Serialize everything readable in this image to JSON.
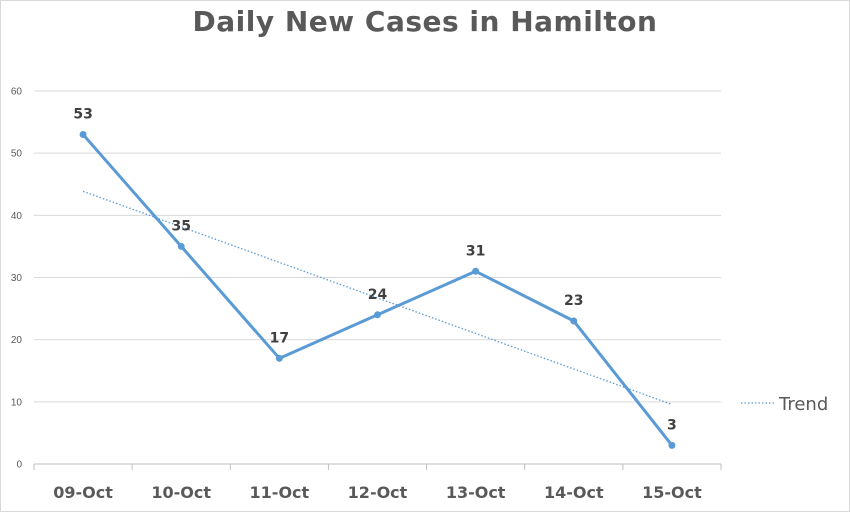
{
  "chart_data": {
    "type": "line",
    "title": "Daily New Cases in Hamilton",
    "categories": [
      "09-Oct",
      "10-Oct",
      "11-Oct",
      "12-Oct",
      "13-Oct",
      "14-Oct",
      "15-Oct"
    ],
    "series": [
      {
        "values": [
          53,
          35,
          17,
          24,
          31,
          23,
          3
        ],
        "color": "#5b9bd5",
        "data_labels": [
          "53",
          "35",
          "17",
          "24",
          "31",
          "23",
          "3"
        ]
      }
    ],
    "trendline": {
      "name": "Trend",
      "kind": "linear",
      "style": "dotted",
      "color": "#5b9bd5",
      "start": 43.86,
      "end": 9.57
    },
    "y_ticks": [
      "0",
      "10",
      "20",
      "30",
      "40",
      "50",
      "60"
    ],
    "ylim": [
      0,
      60
    ],
    "grid": "horizontal",
    "legend_position": "right"
  }
}
